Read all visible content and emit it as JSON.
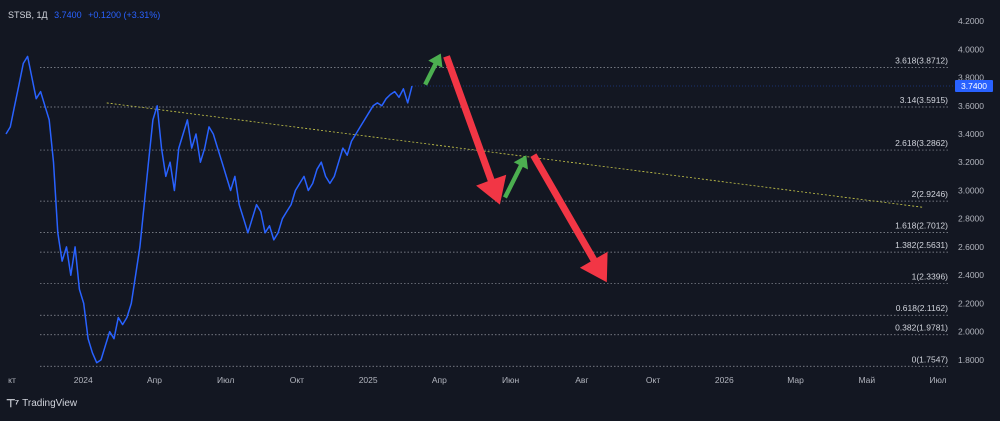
{
  "header": {
    "symbol": "STSB, 1Д",
    "price": "3.7400",
    "change": "+0.1200 (+3.31%)"
  },
  "footer": {
    "brand": "TradingView",
    "logo_icon": "tradingview-logo-icon"
  },
  "colors": {
    "background": "#131722",
    "price_line": "#2962ff",
    "trend_line": "#c9c94a",
    "fib_line": "#b2b5be",
    "arrow_up": "#4caf50",
    "arrow_down": "#f23645",
    "price_badge": "#2962ff",
    "axis_text": "#b2b5be"
  },
  "chart_data": {
    "type": "line",
    "title": "",
    "xlabel": "",
    "ylabel": "",
    "ylim": [
      1.7,
      4.25
    ],
    "y_ticks": [
      "4.2000",
      "4.0000",
      "3.8000",
      "3.6000",
      "3.4000",
      "3.2000",
      "3.0000",
      "2.8000",
      "2.6000",
      "2.4000",
      "2.2000",
      "2.0000",
      "1.8000"
    ],
    "x_ticks": [
      "кт",
      "2024",
      "Апр",
      "Июл",
      "Окт",
      "2025",
      "Апр",
      "Июн",
      "Авг",
      "Окт",
      "2026",
      "Мар",
      "Май",
      "Июл"
    ],
    "last_price": {
      "value": 3.74,
      "label": "3.7400"
    },
    "series": [
      {
        "values": [
          3.4,
          3.45,
          3.6,
          3.75,
          3.9,
          3.95,
          3.8,
          3.65,
          3.7,
          3.6,
          3.5,
          3.2,
          2.7,
          2.5,
          2.6,
          2.4,
          2.6,
          2.3,
          2.2,
          1.95,
          1.85,
          1.78,
          1.8,
          1.9,
          2.0,
          1.95,
          2.1,
          2.05,
          2.1,
          2.2,
          2.4,
          2.6,
          2.9,
          3.2,
          3.5,
          3.6,
          3.3,
          3.1,
          3.2,
          3.0,
          3.3,
          3.4,
          3.5,
          3.3,
          3.4,
          3.2,
          3.3,
          3.45,
          3.4,
          3.3,
          3.2,
          3.1,
          3.0,
          3.1,
          2.9,
          2.8,
          2.7,
          2.8,
          2.9,
          2.85,
          2.7,
          2.75,
          2.65,
          2.7,
          2.8,
          2.85,
          2.9,
          3.0,
          3.05,
          3.1,
          3.0,
          3.05,
          3.15,
          3.2,
          3.1,
          3.05,
          3.1,
          3.2,
          3.3,
          3.25,
          3.35,
          3.4,
          3.45,
          3.5,
          3.55,
          3.6,
          3.62,
          3.6,
          3.65,
          3.68,
          3.7,
          3.66,
          3.72,
          3.62,
          3.74
        ]
      }
    ],
    "fibonacci_levels": [
      {
        "label": "3.618(3.8712)",
        "value": 3.8712
      },
      {
        "label": "3.14(3.5915)",
        "value": 3.5915
      },
      {
        "label": "2.618(3.2862)",
        "value": 3.2862
      },
      {
        "label": "2(2.9246)",
        "value": 2.9246
      },
      {
        "label": "1.618(2.7012)",
        "value": 2.7012
      },
      {
        "label": "1.382(2.5631)",
        "value": 2.5631
      },
      {
        "label": "1(2.3396)",
        "value": 2.3396
      },
      {
        "label": "0.618(2.1162)",
        "value": 2.1162
      },
      {
        "label": "0.382(1.9781)",
        "value": 1.9781
      },
      {
        "label": "0(1.7547)",
        "value": 1.7547
      }
    ],
    "trend_line": {
      "from": {
        "x_index": 1.33,
        "y": 3.62
      },
      "to": {
        "x_index": 12.8,
        "y": 2.88
      }
    },
    "projection_arrows": [
      {
        "type": "up",
        "from": {
          "x_index": 5.8,
          "y": 3.75
        },
        "to": {
          "x_index": 6.02,
          "y": 3.97
        }
      },
      {
        "type": "down",
        "from": {
          "x_index": 6.1,
          "y": 3.95
        },
        "to": {
          "x_index": 6.85,
          "y": 2.9
        }
      },
      {
        "type": "up",
        "from": {
          "x_index": 6.92,
          "y": 2.95
        },
        "to": {
          "x_index": 7.22,
          "y": 3.25
        }
      },
      {
        "type": "down",
        "from": {
          "x_index": 7.32,
          "y": 3.25
        },
        "to": {
          "x_index": 8.35,
          "y": 2.35
        }
      }
    ]
  }
}
